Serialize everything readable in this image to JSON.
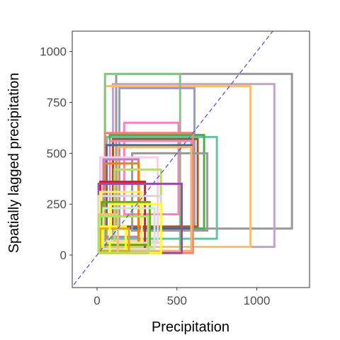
{
  "chart_data": {
    "type": "scatter",
    "title": "",
    "xlabel": "Precipitation",
    "ylabel": "Spatially lagged precipitation",
    "xlim": [
      -155,
      1330
    ],
    "ylim": [
      -160,
      1100
    ],
    "x_ticks": [
      0,
      500,
      1000
    ],
    "y_ticks": [
      0,
      250,
      500,
      750,
      1000
    ],
    "x_tick_labels": [
      "0",
      "500",
      "1000"
    ],
    "y_tick_labels": [
      "0",
      "250",
      "500",
      "750",
      "1000"
    ],
    "reference_line": {
      "style": "dashed",
      "color": "#5555d8",
      "slope": 1,
      "intercept": 0
    },
    "grid": false,
    "legend": "none",
    "boxes": [
      {
        "x0": 120,
        "x1": 1220,
        "y0": 130,
        "y1": 890,
        "color": "#999999"
      },
      {
        "x0": 100,
        "x1": 1110,
        "y0": 40,
        "y1": 840,
        "color": "#c2a5cf"
      },
      {
        "x0": 50,
        "x1": 960,
        "y0": 40,
        "y1": 830,
        "color": "#fdbf6f"
      },
      {
        "x0": 50,
        "x1": 520,
        "y0": 10,
        "y1": 890,
        "color": "#7fc97f"
      },
      {
        "x0": 140,
        "x1": 610,
        "y0": 130,
        "y1": 820,
        "color": "#8da0cb"
      },
      {
        "x0": 170,
        "x1": 510,
        "y0": 200,
        "y1": 650,
        "color": "#f781bf"
      },
      {
        "x0": 60,
        "x1": 750,
        "y0": 80,
        "y1": 580,
        "color": "#66c2a5"
      },
      {
        "x0": 80,
        "x1": 670,
        "y0": 130,
        "y1": 590,
        "color": "#4daf4a"
      },
      {
        "x0": 100,
        "x1": 630,
        "y0": 140,
        "y1": 570,
        "color": "#a65628"
      },
      {
        "x0": 50,
        "x1": 600,
        "y0": 10,
        "y1": 600,
        "color": "#fb8072"
      },
      {
        "x0": 80,
        "x1": 590,
        "y0": 20,
        "y1": 560,
        "color": "#e78ac3"
      },
      {
        "x0": 60,
        "x1": 590,
        "y0": 130,
        "y1": 540,
        "color": "#386cb0"
      },
      {
        "x0": 220,
        "x1": 690,
        "y0": 120,
        "y1": 500,
        "color": "#999999"
      },
      {
        "x0": 130,
        "x1": 590,
        "y0": 20,
        "y1": 530,
        "color": "#fdb462"
      },
      {
        "x0": 20,
        "x1": 380,
        "y0": 70,
        "y1": 480,
        "color": "#fccde5"
      },
      {
        "x0": 40,
        "x1": 260,
        "y0": 90,
        "y1": 470,
        "color": "#bc80bd"
      },
      {
        "x0": 50,
        "x1": 260,
        "y0": 60,
        "y1": 450,
        "color": "#ff7f00"
      },
      {
        "x0": 110,
        "x1": 400,
        "y0": 60,
        "y1": 420,
        "color": "#b3de69"
      },
      {
        "x0": 20,
        "x1": 300,
        "y0": 30,
        "y1": 360,
        "color": "#e41a1c"
      },
      {
        "x0": 10,
        "x1": 530,
        "y0": 10,
        "y1": 350,
        "color": "#984ea3"
      },
      {
        "x0": 10,
        "x1": 400,
        "y0": 60,
        "y1": 290,
        "color": "#d9d9d9"
      },
      {
        "x0": 20,
        "x1": 280,
        "y0": 60,
        "y1": 310,
        "color": "#ffed6f"
      },
      {
        "x0": 30,
        "x1": 330,
        "y0": 50,
        "y1": 260,
        "color": "#66a61e"
      },
      {
        "x0": 40,
        "x1": 360,
        "y0": 30,
        "y1": 230,
        "color": "#ccebc5"
      },
      {
        "x0": 30,
        "x1": 180,
        "y0": 20,
        "y1": 140,
        "color": "#ffff33"
      },
      {
        "x0": 20,
        "x1": 200,
        "y0": 20,
        "y1": 130,
        "color": "#e6ab02"
      },
      {
        "x0": 80,
        "x1": 400,
        "y0": 10,
        "y1": 250,
        "color": "#ffff33"
      },
      {
        "x0": 10,
        "x1": 130,
        "y0": 10,
        "y1": 200,
        "color": "#fdbf6f"
      },
      {
        "x0": 10,
        "x1": 320,
        "y0": 10,
        "y1": 190,
        "color": "#b3de69"
      }
    ]
  }
}
